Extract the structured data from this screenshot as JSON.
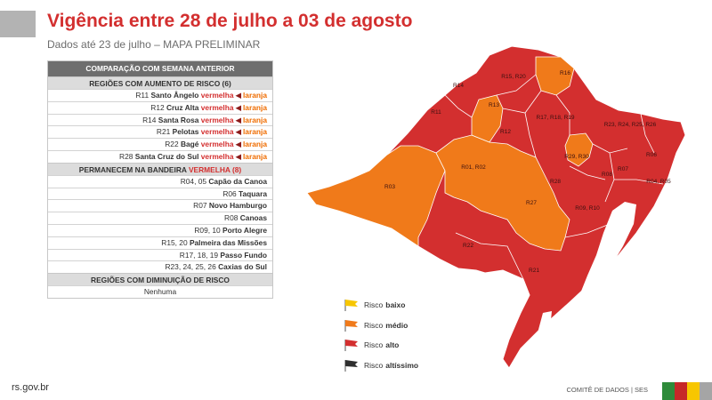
{
  "header": {
    "title": "Vigência entre 28 de julho a 03 de agosto",
    "subtitle": "Dados até 23 de julho – MAPA PRELIMINAR"
  },
  "table": {
    "header_main": "COMPARAÇÃO COM SEMANA ANTERIOR",
    "increase_header": "REGIÕES COM AUMENTO DE RISCO (6)",
    "increase_rows": [
      {
        "code": "R11",
        "name": "Santo Ângelo",
        "from": "vermelha",
        "to": "laranja"
      },
      {
        "code": "R12",
        "name": "Cruz Alta",
        "from": "vermelha",
        "to": "laranja"
      },
      {
        "code": "R14",
        "name": "Santa Rosa",
        "from": "vermelha",
        "to": "laranja"
      },
      {
        "code": "R21",
        "name": "Pelotas",
        "from": "vermelha",
        "to": "laranja"
      },
      {
        "code": "R22",
        "name": "Bagé",
        "from": "vermelha",
        "to": "laranja"
      },
      {
        "code": "R28",
        "name": "Santa Cruz do Sul",
        "from": "vermelha",
        "to": "laranja"
      }
    ],
    "remain_header_prefix": "PERMANECEM NA BANDEIRA",
    "remain_header_flag": "VERMELHA (8)",
    "remain_rows": [
      {
        "code": "R04, 05",
        "name": "Capão da Canoa"
      },
      {
        "code": "R06",
        "name": "Taquara"
      },
      {
        "code": "R07",
        "name": "Novo Hamburgo"
      },
      {
        "code": "R08",
        "name": "Canoas"
      },
      {
        "code": "R09, 10",
        "name": "Porto Alegre"
      },
      {
        "code": "R15, 20",
        "name": "Palmeira das Missões"
      },
      {
        "code": "R17, 18, 19",
        "name": "Passo Fundo"
      },
      {
        "code": "R23, 24, 25, 26",
        "name": "Caxias do Sul"
      }
    ],
    "decrease_header": "REGIÕES COM DIMINUIÇÃO DE RISCO",
    "decrease_value": "Nenhuma"
  },
  "map": {
    "labels": [
      "R15, R20",
      "R16",
      "R14",
      "R13",
      "R11",
      "R12",
      "R17, R18, R19",
      "R23, R24, R25, R26",
      "R01, R02",
      "R29, R30",
      "R06",
      "R03",
      "R28",
      "R08",
      "R07",
      "R04, R05",
      "R27",
      "R09, R10",
      "R22",
      "R21"
    ],
    "colors": {
      "high": "#d32f2f",
      "medium": "#f07a1a",
      "low": "#f7c600",
      "very_high": "#2e2e2e",
      "water": "#ffffff"
    }
  },
  "legend": [
    {
      "prefix": "Risco",
      "level": "baixo",
      "color": "#f7c600"
    },
    {
      "prefix": "Risco",
      "level": "médio",
      "color": "#f07a1a"
    },
    {
      "prefix": "Risco",
      "level": "alto",
      "color": "#d32f2f"
    },
    {
      "prefix": "Risco",
      "level": "altíssimo",
      "color": "#2e2e2e"
    }
  ],
  "footer": {
    "url": "rs.gov.br",
    "credit": "COMITÊ DE DADOS | SES",
    "brand_colors": [
      "#2e8b3a",
      "#c62828",
      "#f7c600",
      "#a5a5a5"
    ]
  }
}
